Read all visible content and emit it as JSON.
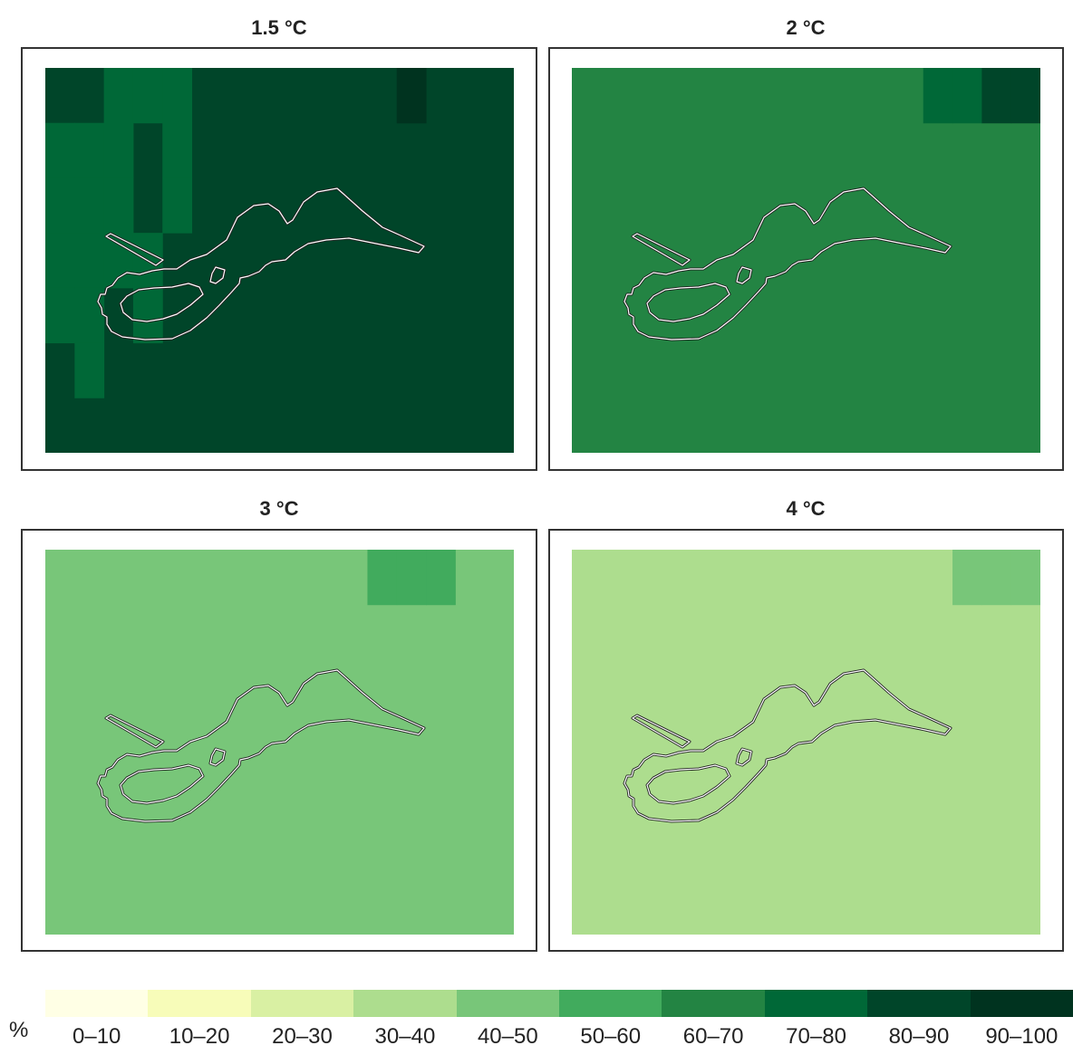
{
  "colors": [
    "#ffffe5",
    "#f7fcb9",
    "#d9f0a3",
    "#addd8e",
    "#78c679",
    "#41ab5d",
    "#238443",
    "#006837",
    "#004529",
    "#00331f"
  ],
  "legend": {
    "unit": "%",
    "labels": [
      "0–10",
      "10–20",
      "20–30",
      "30–40",
      "40–50",
      "50–60",
      "60–70",
      "70–80",
      "80–90",
      "90–100"
    ]
  },
  "panels": [
    {
      "title": "1.5 °C",
      "base_class": 8,
      "cells": [
        [
          7,
          0,
          1
        ],
        [
          7,
          0,
          2
        ],
        [
          7,
          0,
          3
        ],
        [
          7,
          0,
          4
        ],
        [
          7,
          1,
          1
        ],
        [
          7,
          1,
          2
        ],
        [
          7,
          1,
          3
        ],
        [
          7,
          1,
          4
        ],
        [
          7,
          1,
          5
        ],
        [
          7,
          2,
          0
        ],
        [
          7,
          2,
          1
        ],
        [
          7,
          2,
          2
        ],
        [
          7,
          2,
          3
        ],
        [
          7,
          3,
          0
        ],
        [
          7,
          3,
          3
        ],
        [
          7,
          3,
          4
        ],
        [
          7,
          4,
          0
        ],
        [
          7,
          4,
          1
        ],
        [
          7,
          4,
          2
        ],
        [
          9,
          12,
          0
        ]
      ]
    },
    {
      "title": "2 °C",
      "base_class": 6,
      "cells": [
        [
          7,
          12,
          0
        ],
        [
          7,
          13,
          0
        ],
        [
          8,
          14,
          0
        ],
        [
          8,
          15,
          0
        ]
      ]
    },
    {
      "title": "3 °C",
      "base_class": 4,
      "cells": [
        [
          5,
          11,
          0
        ],
        [
          5,
          12,
          0
        ],
        [
          5,
          13,
          0
        ]
      ]
    },
    {
      "title": "4 °C",
      "base_class": 3,
      "cells": [
        [
          4,
          13,
          0
        ],
        [
          4,
          14,
          0
        ],
        [
          4,
          15,
          0
        ]
      ]
    }
  ]
}
